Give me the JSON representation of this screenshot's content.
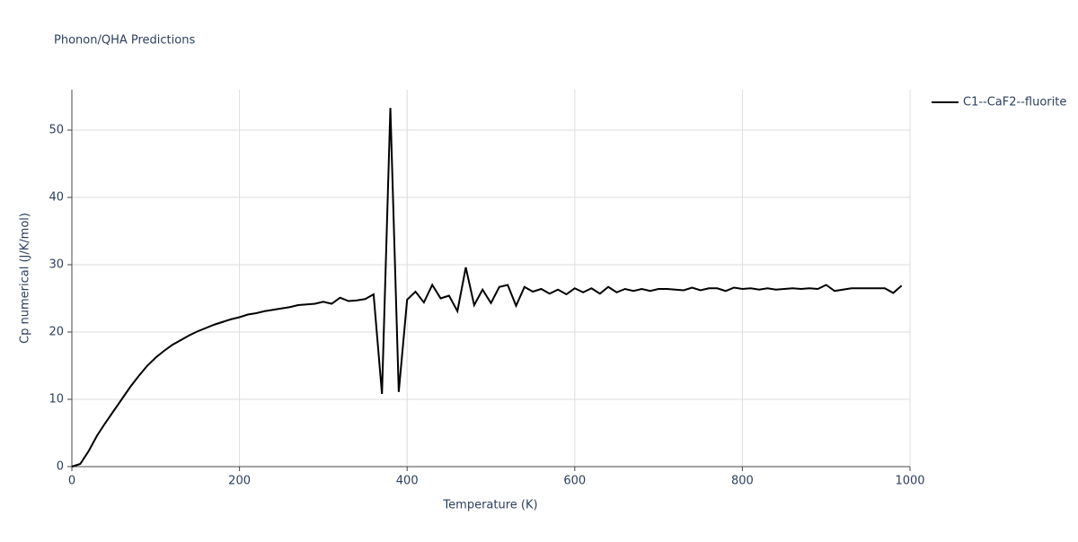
{
  "chart_data": {
    "type": "line",
    "title": "Phonon/QHA Predictions",
    "x_label": "Temperature (K)",
    "y_label": "Cp numerical (J/K/mol)",
    "x": [
      0,
      10,
      20,
      30,
      40,
      50,
      60,
      70,
      80,
      90,
      100,
      110,
      120,
      130,
      140,
      150,
      160,
      170,
      180,
      190,
      200,
      210,
      220,
      230,
      240,
      250,
      260,
      270,
      280,
      290,
      300,
      310,
      320,
      330,
      340,
      350,
      360,
      370,
      380,
      390,
      400,
      410,
      420,
      430,
      440,
      450,
      460,
      470,
      480,
      490,
      500,
      510,
      520,
      530,
      540,
      550,
      560,
      570,
      580,
      590,
      600,
      610,
      620,
      630,
      640,
      650,
      660,
      670,
      680,
      690,
      700,
      710,
      720,
      730,
      740,
      750,
      760,
      770,
      780,
      790,
      800,
      810,
      820,
      830,
      840,
      850,
      860,
      870,
      880,
      890,
      900,
      910,
      920,
      930,
      940,
      950,
      960,
      970,
      980,
      990
    ],
    "series": [
      {
        "name": "C1--CaF2--fluorite",
        "color": "#000000",
        "values": [
          0,
          0.4,
          2.3,
          4.6,
          6.5,
          8.3,
          10.1,
          11.9,
          13.5,
          15,
          16.2,
          17.2,
          18.1,
          18.8,
          19.5,
          20.1,
          20.6,
          21.1,
          21.5,
          21.9,
          22.2,
          22.6,
          22.8,
          23.1,
          23.3,
          23.5,
          23.7,
          24.0,
          24.1,
          24.2,
          24.5,
          24.2,
          25.1,
          24.6,
          24.7,
          24.9,
          25.6,
          10.8,
          53.3,
          11.1,
          24.8,
          26.0,
          24.4,
          27.0,
          25.0,
          25.4,
          23.1,
          29.6,
          24.0,
          26.3,
          24.3,
          26.7,
          27.0,
          23.9,
          26.7,
          26.0,
          26.4,
          25.7,
          26.3,
          25.6,
          26.5,
          25.9,
          26.5,
          25.7,
          26.7,
          25.9,
          26.4,
          26.1,
          26.4,
          26.1,
          26.4,
          26.4,
          26.3,
          26.2,
          26.6,
          26.2,
          26.5,
          26.5,
          26.1,
          26.6,
          26.4,
          26.5,
          26.3,
          26.5,
          26.3,
          26.4,
          26.5,
          26.4,
          26.5,
          26.4,
          27.0,
          26.1,
          26.3,
          26.5,
          26.5,
          26.5,
          26.5,
          26.5,
          25.8,
          26.9
        ]
      }
    ],
    "xlim": [
      0,
      1000
    ],
    "xticks": [
      0,
      200,
      400,
      600,
      800,
      1000
    ],
    "ylim": [
      0,
      56
    ],
    "yticks": [
      0,
      10,
      20,
      30,
      40,
      50
    ],
    "grid": true,
    "legend": "right"
  }
}
